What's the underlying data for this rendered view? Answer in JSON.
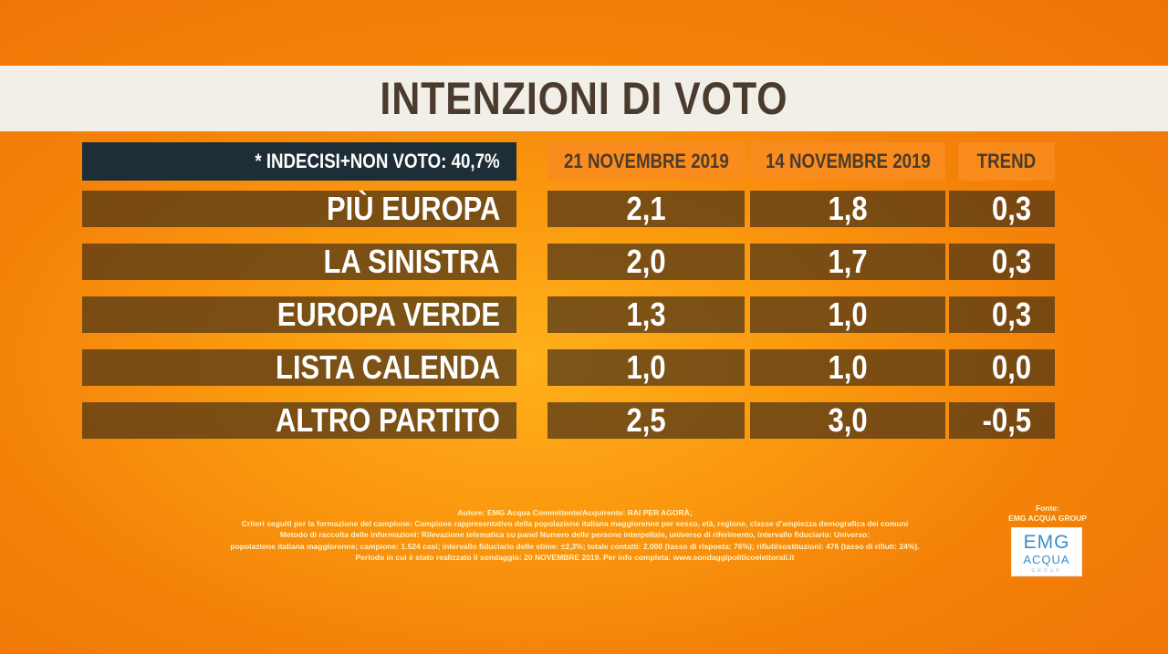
{
  "title": "INTENZIONI DI VOTO",
  "note": "* INDECISI+NON VOTO: 40,7%",
  "chart_data": {
    "type": "table",
    "columns": [
      "21 NOVEMBRE 2019",
      "14 NOVEMBRE 2019",
      "TREND"
    ],
    "rows": [
      {
        "party": "PIÙ EUROPA",
        "v1": "2,1",
        "v2": "1,8",
        "trend": "0,3"
      },
      {
        "party": "LA SINISTRA",
        "v1": "2,0",
        "v2": "1,7",
        "trend": "0,3"
      },
      {
        "party": "EUROPA VERDE",
        "v1": "1,3",
        "v2": "1,0",
        "trend": "0,3"
      },
      {
        "party": "LISTA CALENDA",
        "v1": "1,0",
        "v2": "1,0",
        "trend": "0,0"
      },
      {
        "party": "ALTRO PARTITO",
        "v1": "2,5",
        "v2": "3,0",
        "trend": "-0,5"
      }
    ]
  },
  "footer": {
    "lines": [
      "Autore: EMG Acqua Committente/Acquirente: RAI PER AGORÀ;",
      "Criteri seguiti per la formazione del campione: Campione rappresentativo della popolazione italiana maggiorenne per sesso, età, regione, classe d'ampiezza demografica dei comuni",
      "Metodo di raccolta delle informazioni: Rilevazione telematica su panel Numero delle persone interpellate, universo di riferimento, intervallo fiduciario: Universo:",
      "popolazione italiana maggiorenne; campione: 1.524 casi; intervallo fiduciario delle stime: ±2,3%; totale contatti: 2.000 (tasso di risposta: 76%); rifiuti/sostituzioni: 476 (tasso di rifiuti: 24%).",
      "Periodo in cui è stato realizzato il sondaggio: 20 NOVEMBRE 2019. Per info completa: www.sondaggipoliticoelettorali.it"
    ]
  },
  "source": {
    "label": "Fonte:",
    "name": "EMG ACQUA GROUP",
    "logo_top": "EMG",
    "logo_bottom": "ACQUA",
    "logo_small": "GROUP"
  }
}
